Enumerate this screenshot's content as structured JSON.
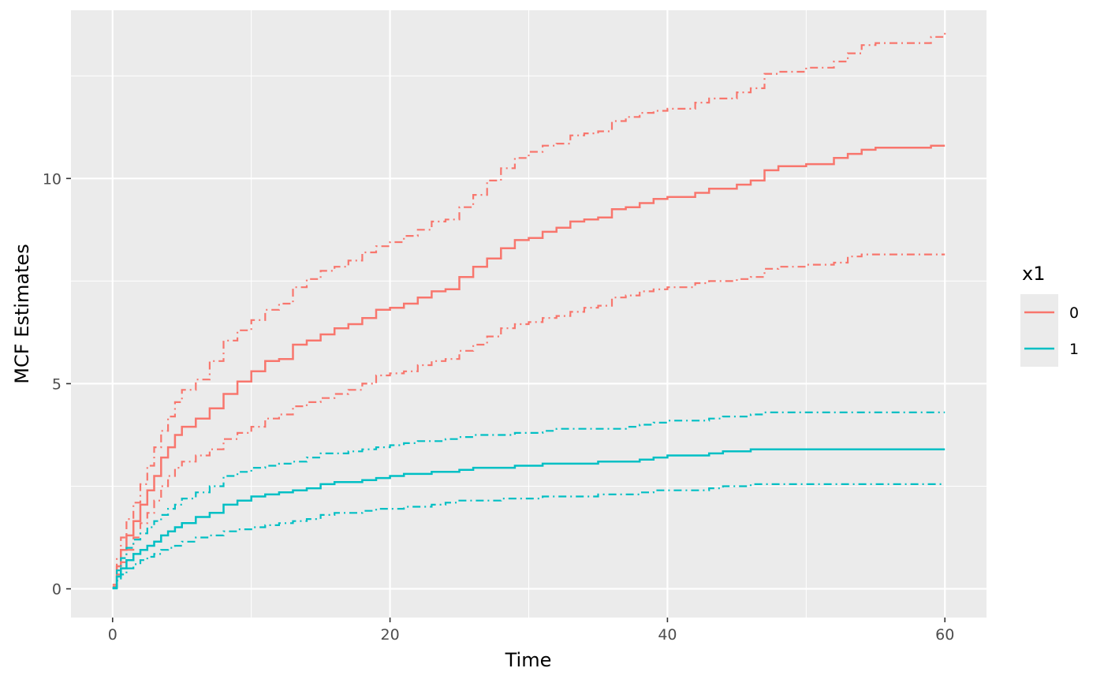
{
  "chart_data": {
    "type": "line",
    "xlabel": "Time",
    "ylabel": "MCF Estimates",
    "xlim": [
      -3,
      63
    ],
    "ylim": [
      -0.7,
      14.1
    ],
    "x_ticks": [
      0,
      20,
      40,
      60
    ],
    "x_tick_labels": [
      "0",
      "20",
      "40",
      "60"
    ],
    "y_ticks": [
      0,
      5,
      10
    ],
    "y_tick_labels": [
      "0",
      "5",
      "10"
    ],
    "grid": true,
    "background": "#ebebeb",
    "legend": {
      "title": "x1",
      "position": "right"
    },
    "series": [
      {
        "name": "0",
        "color": "#f8766d",
        "estimate": [
          [
            0,
            0.05
          ],
          [
            0.3,
            0.55
          ],
          [
            0.6,
            0.95
          ],
          [
            1,
            1.3
          ],
          [
            1.5,
            1.65
          ],
          [
            2,
            2.05
          ],
          [
            2.5,
            2.4
          ],
          [
            3,
            2.75
          ],
          [
            3.5,
            3.2
          ],
          [
            4,
            3.45
          ],
          [
            4.5,
            3.75
          ],
          [
            5,
            3.95
          ],
          [
            6,
            4.15
          ],
          [
            7,
            4.4
          ],
          [
            8,
            4.75
          ],
          [
            9,
            5.05
          ],
          [
            10,
            5.3
          ],
          [
            11,
            5.55
          ],
          [
            12,
            5.6
          ],
          [
            13,
            5.95
          ],
          [
            14,
            6.05
          ],
          [
            15,
            6.2
          ],
          [
            16,
            6.35
          ],
          [
            17,
            6.45
          ],
          [
            18,
            6.6
          ],
          [
            19,
            6.8
          ],
          [
            20,
            6.85
          ],
          [
            21,
            6.95
          ],
          [
            22,
            7.1
          ],
          [
            23,
            7.25
          ],
          [
            24,
            7.3
          ],
          [
            25,
            7.6
          ],
          [
            26,
            7.85
          ],
          [
            27,
            8.05
          ],
          [
            28,
            8.3
          ],
          [
            29,
            8.5
          ],
          [
            30,
            8.55
          ],
          [
            31,
            8.7
          ],
          [
            32,
            8.8
          ],
          [
            33,
            8.95
          ],
          [
            34,
            9.0
          ],
          [
            35,
            9.05
          ],
          [
            36,
            9.25
          ],
          [
            37,
            9.3
          ],
          [
            38,
            9.4
          ],
          [
            39,
            9.5
          ],
          [
            40,
            9.55
          ],
          [
            42,
            9.65
          ],
          [
            43,
            9.75
          ],
          [
            45,
            9.85
          ],
          [
            46,
            9.95
          ],
          [
            47,
            10.2
          ],
          [
            48,
            10.3
          ],
          [
            50,
            10.35
          ],
          [
            52,
            10.5
          ],
          [
            53,
            10.6
          ],
          [
            54,
            10.7
          ],
          [
            55,
            10.75
          ],
          [
            59,
            10.8
          ],
          [
            60,
            10.8
          ]
        ],
        "upper": [
          [
            0,
            0.1
          ],
          [
            0.3,
            0.75
          ],
          [
            0.6,
            1.25
          ],
          [
            1,
            1.7
          ],
          [
            1.5,
            2.1
          ],
          [
            2,
            2.55
          ],
          [
            2.5,
            3.0
          ],
          [
            3,
            3.45
          ],
          [
            3.5,
            3.85
          ],
          [
            4,
            4.2
          ],
          [
            4.5,
            4.55
          ],
          [
            5,
            4.85
          ],
          [
            6,
            5.1
          ],
          [
            7,
            5.55
          ],
          [
            8,
            6.05
          ],
          [
            9,
            6.3
          ],
          [
            10,
            6.55
          ],
          [
            11,
            6.8
          ],
          [
            12,
            6.95
          ],
          [
            13,
            7.35
          ],
          [
            14,
            7.55
          ],
          [
            15,
            7.75
          ],
          [
            16,
            7.85
          ],
          [
            17,
            8.0
          ],
          [
            18,
            8.2
          ],
          [
            19,
            8.35
          ],
          [
            20,
            8.45
          ],
          [
            21,
            8.6
          ],
          [
            22,
            8.75
          ],
          [
            23,
            8.95
          ],
          [
            24,
            9.0
          ],
          [
            25,
            9.3
          ],
          [
            26,
            9.6
          ],
          [
            27,
            9.95
          ],
          [
            28,
            10.25
          ],
          [
            29,
            10.5
          ],
          [
            30,
            10.65
          ],
          [
            31,
            10.8
          ],
          [
            32,
            10.85
          ],
          [
            33,
            11.05
          ],
          [
            34,
            11.1
          ],
          [
            35,
            11.15
          ],
          [
            36,
            11.4
          ],
          [
            37,
            11.5
          ],
          [
            38,
            11.6
          ],
          [
            39,
            11.65
          ],
          [
            40,
            11.7
          ],
          [
            42,
            11.85
          ],
          [
            43,
            11.95
          ],
          [
            45,
            12.1
          ],
          [
            46,
            12.2
          ],
          [
            47,
            12.55
          ],
          [
            48,
            12.6
          ],
          [
            50,
            12.7
          ],
          [
            52,
            12.85
          ],
          [
            53,
            13.05
          ],
          [
            54,
            13.25
          ],
          [
            55,
            13.3
          ],
          [
            59,
            13.45
          ],
          [
            60,
            13.55
          ]
        ],
        "lower": [
          [
            0,
            0.02
          ],
          [
            0.3,
            0.35
          ],
          [
            0.6,
            0.65
          ],
          [
            1,
            0.95
          ],
          [
            1.5,
            1.25
          ],
          [
            2,
            1.6
          ],
          [
            2.5,
            1.85
          ],
          [
            3,
            2.15
          ],
          [
            3.5,
            2.5
          ],
          [
            4,
            2.75
          ],
          [
            4.5,
            2.95
          ],
          [
            5,
            3.1
          ],
          [
            6,
            3.25
          ],
          [
            7,
            3.4
          ],
          [
            8,
            3.65
          ],
          [
            9,
            3.8
          ],
          [
            10,
            3.95
          ],
          [
            11,
            4.15
          ],
          [
            12,
            4.25
          ],
          [
            13,
            4.45
          ],
          [
            14,
            4.55
          ],
          [
            15,
            4.65
          ],
          [
            16,
            4.75
          ],
          [
            17,
            4.85
          ],
          [
            18,
            5.0
          ],
          [
            19,
            5.2
          ],
          [
            20,
            5.25
          ],
          [
            21,
            5.3
          ],
          [
            22,
            5.45
          ],
          [
            23,
            5.55
          ],
          [
            24,
            5.6
          ],
          [
            25,
            5.8
          ],
          [
            26,
            5.95
          ],
          [
            27,
            6.15
          ],
          [
            28,
            6.35
          ],
          [
            29,
            6.45
          ],
          [
            30,
            6.5
          ],
          [
            31,
            6.6
          ],
          [
            32,
            6.65
          ],
          [
            33,
            6.75
          ],
          [
            34,
            6.85
          ],
          [
            35,
            6.9
          ],
          [
            36,
            7.1
          ],
          [
            37,
            7.15
          ],
          [
            38,
            7.25
          ],
          [
            39,
            7.3
          ],
          [
            40,
            7.35
          ],
          [
            42,
            7.45
          ],
          [
            43,
            7.5
          ],
          [
            45,
            7.55
          ],
          [
            46,
            7.6
          ],
          [
            47,
            7.8
          ],
          [
            48,
            7.85
          ],
          [
            50,
            7.9
          ],
          [
            52,
            7.95
          ],
          [
            53,
            8.1
          ],
          [
            54,
            8.15
          ],
          [
            55,
            8.15
          ],
          [
            59,
            8.15
          ],
          [
            60,
            8.15
          ]
        ]
      },
      {
        "name": "1",
        "color": "#00bfc4",
        "estimate": [
          [
            0,
            0.02
          ],
          [
            0.3,
            0.3
          ],
          [
            0.6,
            0.5
          ],
          [
            1,
            0.7
          ],
          [
            1.5,
            0.85
          ],
          [
            2,
            0.95
          ],
          [
            2.5,
            1.05
          ],
          [
            3,
            1.15
          ],
          [
            3.5,
            1.3
          ],
          [
            4,
            1.4
          ],
          [
            4.5,
            1.5
          ],
          [
            5,
            1.6
          ],
          [
            6,
            1.75
          ],
          [
            7,
            1.85
          ],
          [
            8,
            2.05
          ],
          [
            9,
            2.15
          ],
          [
            10,
            2.25
          ],
          [
            11,
            2.3
          ],
          [
            12,
            2.35
          ],
          [
            13,
            2.4
          ],
          [
            14,
            2.45
          ],
          [
            15,
            2.55
          ],
          [
            16,
            2.6
          ],
          [
            17,
            2.6
          ],
          [
            18,
            2.65
          ],
          [
            19,
            2.7
          ],
          [
            20,
            2.75
          ],
          [
            21,
            2.8
          ],
          [
            22,
            2.8
          ],
          [
            23,
            2.85
          ],
          [
            24,
            2.85
          ],
          [
            25,
            2.9
          ],
          [
            26,
            2.95
          ],
          [
            28,
            2.95
          ],
          [
            29,
            3.0
          ],
          [
            30,
            3.0
          ],
          [
            31,
            3.05
          ],
          [
            32,
            3.05
          ],
          [
            35,
            3.1
          ],
          [
            37,
            3.1
          ],
          [
            38,
            3.15
          ],
          [
            39,
            3.2
          ],
          [
            40,
            3.25
          ],
          [
            43,
            3.3
          ],
          [
            44,
            3.35
          ],
          [
            46,
            3.4
          ],
          [
            47,
            3.4
          ],
          [
            60,
            3.4
          ]
        ],
        "upper": [
          [
            0,
            0.03
          ],
          [
            0.3,
            0.45
          ],
          [
            0.6,
            0.75
          ],
          [
            1,
            1.0
          ],
          [
            1.5,
            1.2
          ],
          [
            2,
            1.35
          ],
          [
            2.5,
            1.5
          ],
          [
            3,
            1.65
          ],
          [
            3.5,
            1.8
          ],
          [
            4,
            1.95
          ],
          [
            4.5,
            2.05
          ],
          [
            5,
            2.2
          ],
          [
            6,
            2.35
          ],
          [
            7,
            2.5
          ],
          [
            8,
            2.75
          ],
          [
            9,
            2.85
          ],
          [
            10,
            2.95
          ],
          [
            11,
            3.0
          ],
          [
            12,
            3.05
          ],
          [
            13,
            3.1
          ],
          [
            14,
            3.2
          ],
          [
            15,
            3.3
          ],
          [
            16,
            3.3
          ],
          [
            17,
            3.35
          ],
          [
            18,
            3.4
          ],
          [
            19,
            3.45
          ],
          [
            20,
            3.5
          ],
          [
            21,
            3.55
          ],
          [
            22,
            3.6
          ],
          [
            23,
            3.6
          ],
          [
            24,
            3.65
          ],
          [
            25,
            3.7
          ],
          [
            26,
            3.75
          ],
          [
            28,
            3.75
          ],
          [
            29,
            3.8
          ],
          [
            30,
            3.8
          ],
          [
            31,
            3.85
          ],
          [
            32,
            3.9
          ],
          [
            35,
            3.9
          ],
          [
            37,
            3.95
          ],
          [
            38,
            4.0
          ],
          [
            39,
            4.05
          ],
          [
            40,
            4.1
          ],
          [
            43,
            4.15
          ],
          [
            44,
            4.2
          ],
          [
            46,
            4.25
          ],
          [
            47,
            4.3
          ],
          [
            60,
            4.3
          ]
        ],
        "lower": [
          [
            0,
            0.01
          ],
          [
            0.3,
            0.2
          ],
          [
            0.6,
            0.35
          ],
          [
            1,
            0.5
          ],
          [
            1.5,
            0.6
          ],
          [
            2,
            0.7
          ],
          [
            2.5,
            0.78
          ],
          [
            3,
            0.85
          ],
          [
            3.5,
            0.95
          ],
          [
            4,
            1.0
          ],
          [
            4.5,
            1.05
          ],
          [
            5,
            1.15
          ],
          [
            6,
            1.25
          ],
          [
            7,
            1.3
          ],
          [
            8,
            1.4
          ],
          [
            9,
            1.45
          ],
          [
            10,
            1.5
          ],
          [
            11,
            1.55
          ],
          [
            12,
            1.6
          ],
          [
            13,
            1.65
          ],
          [
            14,
            1.7
          ],
          [
            15,
            1.8
          ],
          [
            16,
            1.85
          ],
          [
            17,
            1.85
          ],
          [
            18,
            1.9
          ],
          [
            19,
            1.95
          ],
          [
            20,
            1.95
          ],
          [
            21,
            2.0
          ],
          [
            22,
            2.0
          ],
          [
            23,
            2.05
          ],
          [
            24,
            2.1
          ],
          [
            25,
            2.15
          ],
          [
            26,
            2.15
          ],
          [
            28,
            2.2
          ],
          [
            29,
            2.2
          ],
          [
            30,
            2.2
          ],
          [
            31,
            2.25
          ],
          [
            32,
            2.25
          ],
          [
            35,
            2.3
          ],
          [
            37,
            2.3
          ],
          [
            38,
            2.35
          ],
          [
            39,
            2.4
          ],
          [
            40,
            2.4
          ],
          [
            43,
            2.45
          ],
          [
            44,
            2.5
          ],
          [
            46,
            2.55
          ],
          [
            47,
            2.55
          ],
          [
            60,
            2.55
          ]
        ]
      }
    ]
  }
}
